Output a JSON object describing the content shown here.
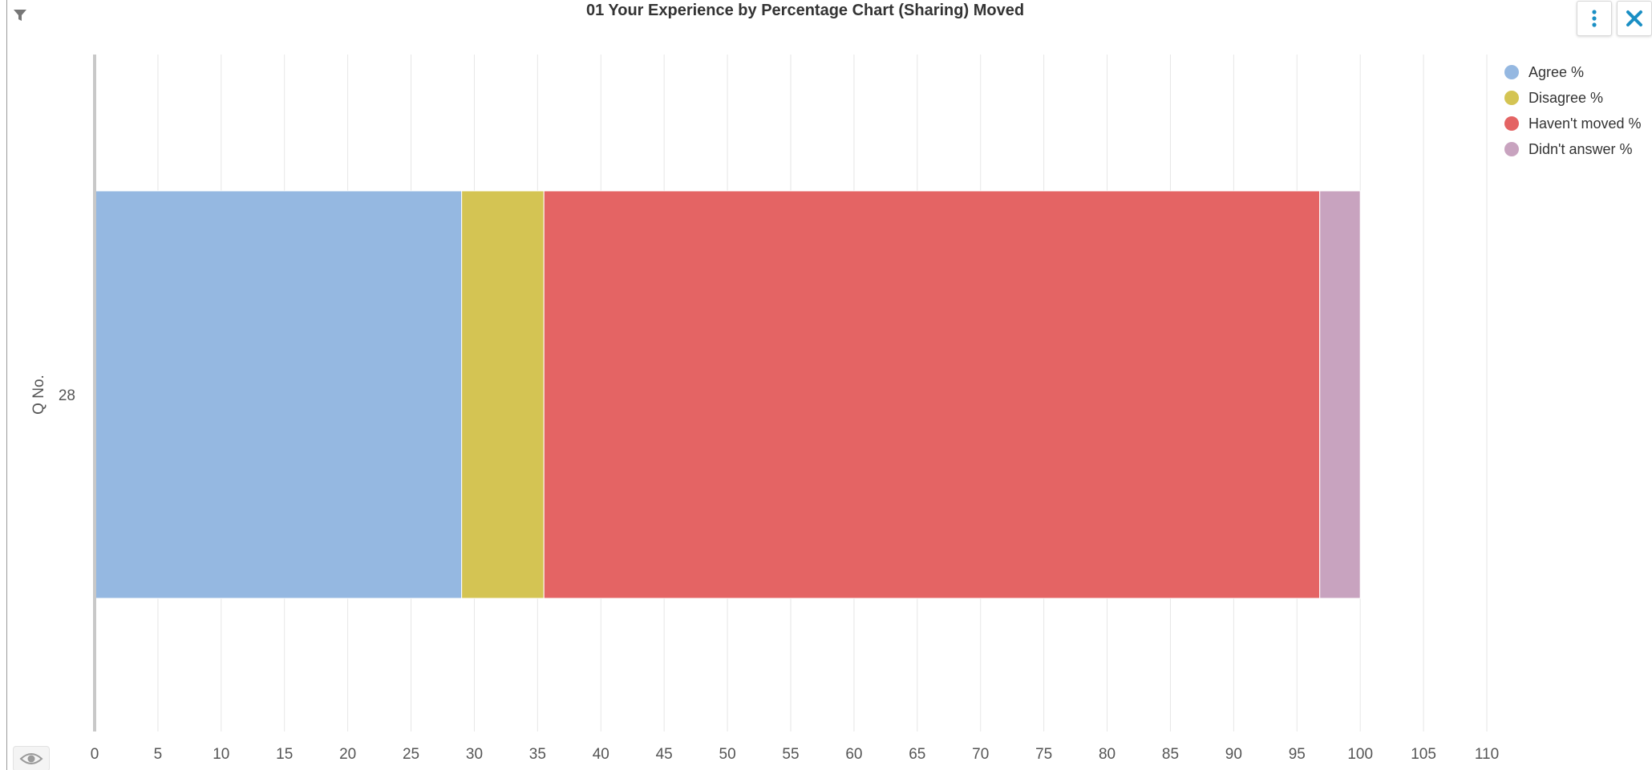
{
  "header": {
    "chart_title": "01 Your Experience by Percentage Chart (Sharing) Moved"
  },
  "icons": {
    "filter": "filter-icon",
    "eye": "eye-icon",
    "menu": "vertical-ellipsis-icon",
    "close": "close-icon"
  },
  "chart_data": {
    "type": "bar",
    "orientation": "horizontal",
    "stacked": true,
    "categories": [
      "28"
    ],
    "ylabel": "Q No.",
    "xlabel": "",
    "xlim": [
      0,
      110
    ],
    "xticks": [
      0,
      5,
      10,
      15,
      20,
      25,
      30,
      35,
      40,
      45,
      50,
      55,
      60,
      65,
      70,
      75,
      80,
      85,
      90,
      95,
      100,
      105,
      110
    ],
    "grid": true,
    "legend_position": "top-right",
    "series": [
      {
        "name": "Agree %",
        "values": [
          29.0
        ],
        "color": "#95b8e1"
      },
      {
        "name": "Disagree %",
        "values": [
          6.5
        ],
        "color": "#d4c453"
      },
      {
        "name": "Haven't moved %",
        "values": [
          61.3
        ],
        "color": "#e46464"
      },
      {
        "name": "Didn't answer %",
        "values": [
          3.2
        ],
        "color": "#c8a3bf"
      }
    ]
  }
}
